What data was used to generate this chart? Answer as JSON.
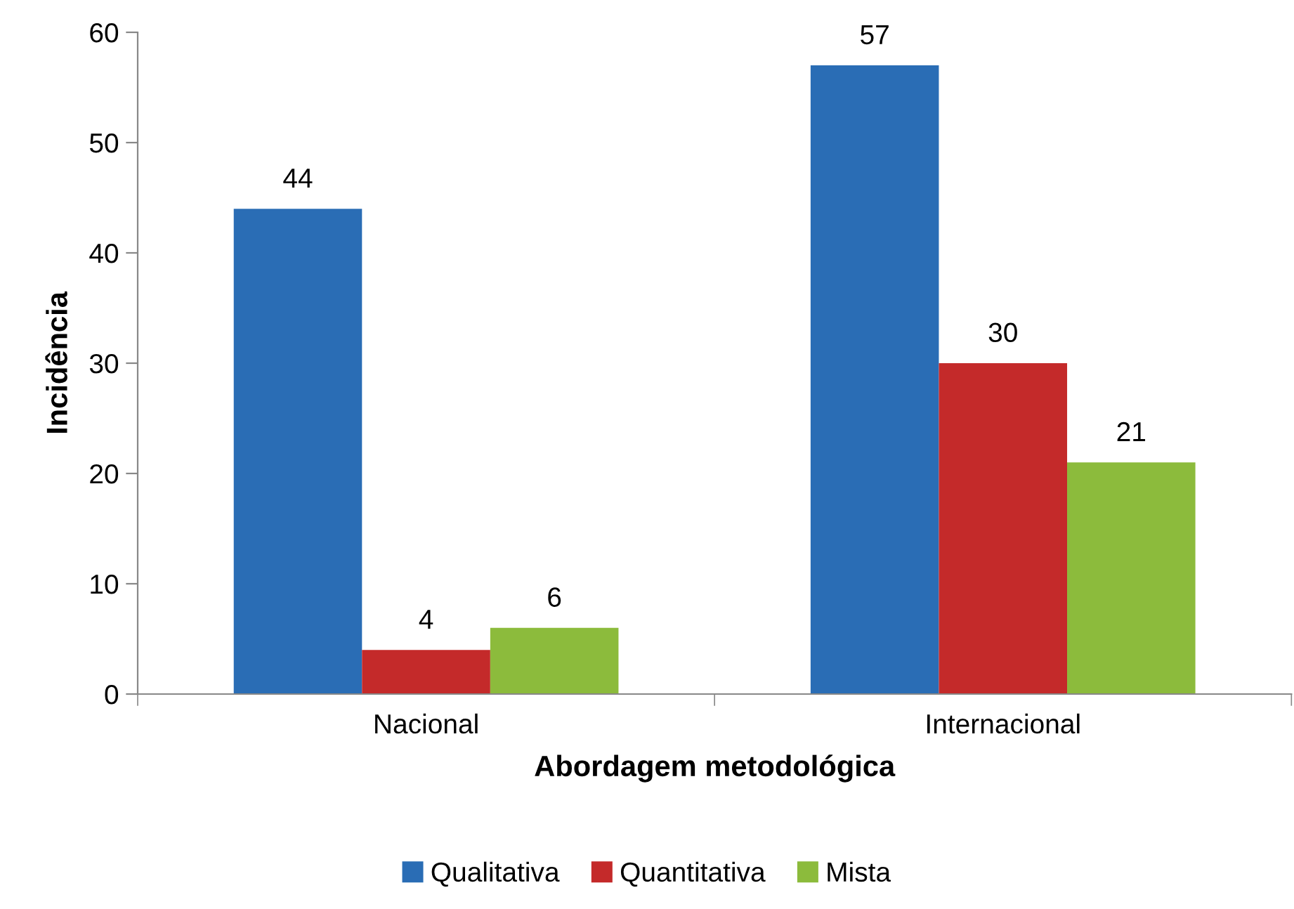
{
  "chart_data": {
    "type": "bar",
    "xlabel": "Abordagem metodológica",
    "ylabel": "Incidência",
    "categories": [
      "Nacional",
      "Internacional"
    ],
    "series": [
      {
        "name": "Qualitativa",
        "color": "#2a6db5",
        "values": [
          44,
          57
        ]
      },
      {
        "name": "Quantitativa",
        "color": "#c42a2a",
        "values": [
          4,
          30
        ]
      },
      {
        "name": "Mista",
        "color": "#8cbb3c",
        "values": [
          6,
          21
        ]
      }
    ],
    "ylim": [
      0,
      60
    ],
    "yticks": [
      0,
      10,
      20,
      30,
      40,
      50,
      60
    ],
    "grid": false,
    "legend": "bottom",
    "data_labels": true
  }
}
